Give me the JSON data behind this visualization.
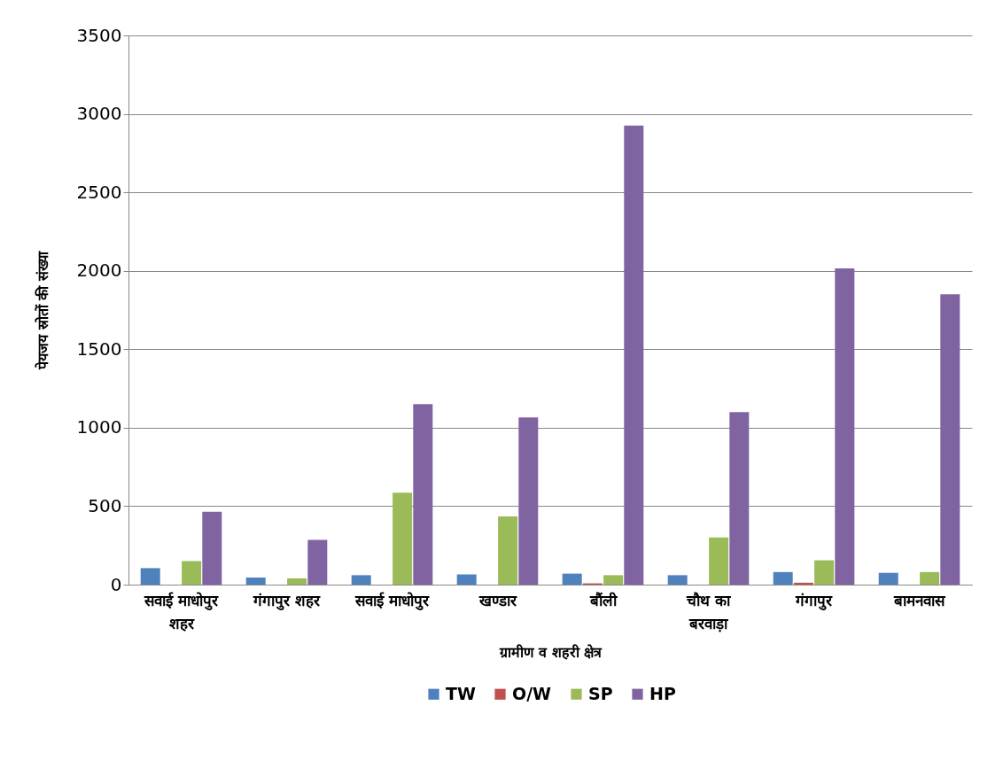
{
  "chart_data": {
    "type": "bar",
    "xlabel": "ग्रामीण व शहरी क्षेत्र",
    "ylabel": "पेयजय स्रोतों की संख्या",
    "categories": [
      "सवाई माधोपुर शहर",
      "गंगापुर शहर",
      "सवाई माधोपुर",
      "खण्डार",
      "बौंली",
      "चौथ का बरवाड़ा",
      "गंगापुर",
      "बामनवास"
    ],
    "series": [
      {
        "name": "TW",
        "color": "#4f81bd",
        "values": [
          105,
          45,
          60,
          65,
          70,
          60,
          80,
          75
        ]
      },
      {
        "name": "O/W",
        "color": "#c0504d",
        "values": [
          null,
          null,
          null,
          null,
          8,
          null,
          12,
          null
        ]
      },
      {
        "name": "SP",
        "color": "#9bbb59",
        "values": [
          150,
          40,
          585,
          435,
          60,
          300,
          155,
          80
        ]
      },
      {
        "name": "HP",
        "color": "#8064a2",
        "values": [
          465,
          285,
          1150,
          1065,
          2925,
          1100,
          2015,
          1850
        ]
      }
    ],
    "ylim": [
      0,
      3500
    ],
    "yticks": [
      0,
      500,
      1000,
      1500,
      2000,
      2500,
      3000,
      3500
    ],
    "grid": "y",
    "legend": "bottom"
  }
}
